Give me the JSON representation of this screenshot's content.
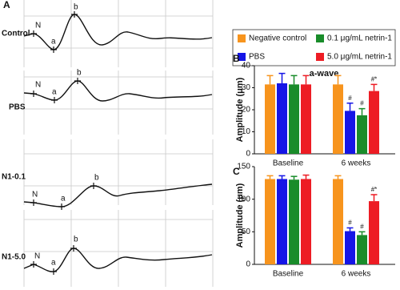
{
  "panel_a": {
    "label": "A",
    "traces": [
      {
        "name": "Control",
        "points": [
          "N",
          "a",
          "b"
        ]
      },
      {
        "name": "PBS",
        "points": [
          "N",
          "a",
          "b"
        ]
      },
      {
        "name": "N1-0.1",
        "points": [
          "N",
          "a",
          "b"
        ]
      },
      {
        "name": "N1-5.0",
        "points": [
          "N",
          "a",
          "b"
        ]
      }
    ]
  },
  "chart_data": [
    {
      "type": "bar",
      "panel": "B",
      "title": "a-wave",
      "y_label": "Amplitude (μm)",
      "categories": [
        "Baseline",
        "6 weeks"
      ],
      "ylim": [
        0,
        40
      ],
      "yticks": [
        0,
        10,
        20,
        30,
        40
      ],
      "series": [
        {
          "name": "Negative control",
          "color": "#f7941d",
          "values": [
            31.5,
            31.5
          ],
          "errors": [
            4,
            4
          ],
          "markers": [
            null,
            null
          ]
        },
        {
          "name": "PBS",
          "color": "#1515e6",
          "values": [
            32,
            19.5
          ],
          "errors": [
            4.5,
            3.5
          ],
          "markers": [
            null,
            "#"
          ]
        },
        {
          "name": "0.1 μg/mL netrin-1",
          "color": "#198c2a",
          "values": [
            31.5,
            17.5
          ],
          "errors": [
            4,
            3
          ],
          "markers": [
            null,
            "#"
          ]
        },
        {
          "name": "5.0 μg/mL netrin-1",
          "color": "#ed1c24",
          "values": [
            31.5,
            28.5
          ],
          "errors": [
            4,
            3
          ],
          "markers": [
            null,
            "#*"
          ]
        }
      ]
    },
    {
      "type": "bar",
      "panel": "C",
      "y_label": "Amplitude (μm)",
      "categories": [
        "Baseline",
        "6 weeks"
      ],
      "ylim": [
        0,
        150
      ],
      "yticks": [
        0,
        50,
        100,
        150
      ],
      "series": [
        {
          "color": "#f7941d",
          "values": [
            131,
            131
          ],
          "errors": [
            5,
            5
          ],
          "markers": [
            null,
            null
          ]
        },
        {
          "color": "#1515e6",
          "values": [
            131,
            51
          ],
          "errors": [
            5,
            5
          ],
          "markers": [
            null,
            "#"
          ]
        },
        {
          "color": "#198c2a",
          "values": [
            130,
            45
          ],
          "errors": [
            5,
            5
          ],
          "markers": [
            null,
            "#"
          ]
        },
        {
          "color": "#ed1c24",
          "values": [
            131,
            97
          ],
          "errors": [
            6,
            10
          ],
          "markers": [
            null,
            "#*"
          ]
        }
      ]
    }
  ]
}
